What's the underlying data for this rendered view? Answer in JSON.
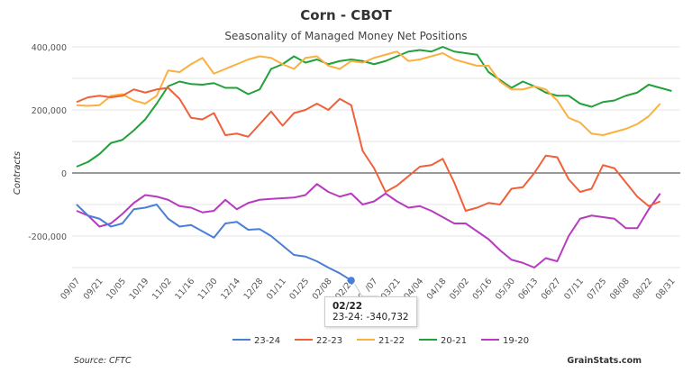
{
  "chart_data": {
    "type": "line",
    "title": "Corn - CBOT",
    "subtitle": "Seasonality of Managed Money Net Positions",
    "ylabel": "Contracts",
    "xlabel": "",
    "ylim": [
      -300000,
      400000
    ],
    "yticks": [
      -200000,
      0,
      200000,
      400000
    ],
    "ytick_labels": [
      "-200,000",
      "0",
      "200,000",
      "400,000"
    ],
    "grid": true,
    "legend_position": "bottom",
    "x_tick_labels": [
      "09/07",
      "09/21",
      "10/05",
      "10/19",
      "11/02",
      "11/16",
      "11/30",
      "12/14",
      "12/28",
      "01/11",
      "01/25",
      "02/08",
      "02/22",
      "03/07",
      "03/21",
      "04/04",
      "04/18",
      "05/02",
      "05/16",
      "05/30",
      "06/13",
      "06/27",
      "07/11",
      "07/25",
      "08/08",
      "08/22",
      "08/31"
    ],
    "series": [
      {
        "name": "23-24",
        "color": "#4a7fd6",
        "values": [
          -100000,
          -135000,
          -145000,
          -170000,
          -160000,
          -115000,
          -110000,
          -100000,
          -145000,
          -170000,
          -165000,
          -185000,
          -205000,
          -160000,
          -155000,
          -180000,
          -178000,
          -200000,
          -230000,
          -260000,
          -265000,
          -280000,
          -300000,
          -318000,
          -340732
        ]
      },
      {
        "name": "22-23",
        "color": "#f0603a",
        "values": [
          225000,
          240000,
          245000,
          240000,
          245000,
          265000,
          255000,
          265000,
          270000,
          235000,
          175000,
          170000,
          190000,
          120000,
          125000,
          115000,
          155000,
          195000,
          150000,
          190000,
          200000,
          220000,
          200000,
          235000,
          215000,
          70000,
          15000,
          -60000,
          -40000,
          -10000,
          20000,
          25000,
          45000,
          -30000,
          -120000,
          -110000,
          -95000,
          -100000,
          -50000,
          -45000,
          0,
          55000,
          50000,
          -20000,
          -60000,
          -50000,
          25000,
          15000,
          -30000,
          -75000,
          -105000,
          -90000
        ]
      },
      {
        "name": "21-22",
        "color": "#fbb040",
        "values": [
          215000,
          213000,
          215000,
          245000,
          250000,
          230000,
          220000,
          245000,
          325000,
          320000,
          345000,
          365000,
          315000,
          330000,
          345000,
          360000,
          370000,
          365000,
          345000,
          330000,
          365000,
          370000,
          340000,
          330000,
          355000,
          350000,
          365000,
          375000,
          385000,
          355000,
          360000,
          370000,
          380000,
          360000,
          350000,
          340000,
          340000,
          290000,
          265000,
          265000,
          275000,
          265000,
          230000,
          175000,
          160000,
          125000,
          120000,
          130000,
          140000,
          155000,
          180000,
          220000
        ]
      },
      {
        "name": "20-21",
        "color": "#22a03a",
        "values": [
          20000,
          35000,
          60000,
          95000,
          105000,
          135000,
          170000,
          220000,
          275000,
          290000,
          282000,
          280000,
          285000,
          270000,
          270000,
          250000,
          265000,
          330000,
          345000,
          370000,
          350000,
          360000,
          345000,
          355000,
          360000,
          355000,
          345000,
          355000,
          370000,
          385000,
          390000,
          385000,
          400000,
          385000,
          380000,
          375000,
          320000,
          295000,
          270000,
          290000,
          275000,
          255000,
          245000,
          245000,
          220000,
          210000,
          225000,
          230000,
          245000,
          255000,
          280000,
          270000,
          260000
        ]
      },
      {
        "name": "19-20",
        "color": "#b63bbf",
        "values": [
          -120000,
          -135000,
          -170000,
          -160000,
          -130000,
          -95000,
          -70000,
          -75000,
          -85000,
          -105000,
          -110000,
          -125000,
          -120000,
          -85000,
          -115000,
          -95000,
          -85000,
          -82000,
          -80000,
          -78000,
          -70000,
          -35000,
          -60000,
          -75000,
          -65000,
          -100000,
          -90000,
          -65000,
          -90000,
          -110000,
          -105000,
          -120000,
          -140000,
          -160000,
          -160000,
          -185000,
          -210000,
          -245000,
          -275000,
          -285000,
          -300000,
          -270000,
          -280000,
          -200000,
          -145000,
          -135000,
          -140000,
          -145000,
          -175000,
          -175000,
          -115000,
          -65000
        ]
      }
    ],
    "tooltip": {
      "date": "02/22",
      "series": "23-24",
      "value": "-340,732",
      "text": "23-24: -340,732"
    },
    "source": "Source: CFTC",
    "credit": "GrainStats.com"
  }
}
